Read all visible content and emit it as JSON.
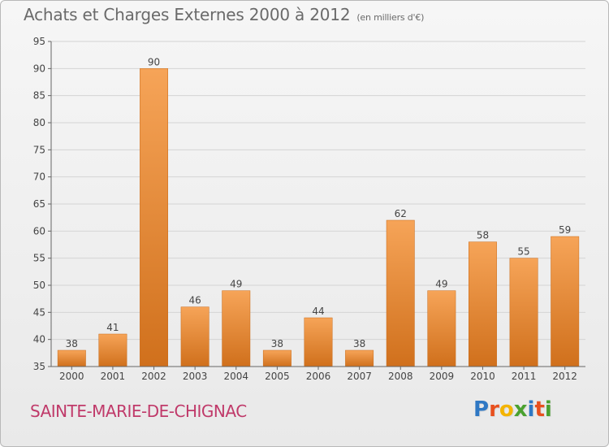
{
  "header": {
    "title": "Achats et Charges Externes 2000 à 2012",
    "subtitle": "(en milliers d'€)"
  },
  "footer": {
    "place": "SAINTE-MARIE-DE-CHIGNAC",
    "logo_text": "Proxiti",
    "logo_colors": [
      "#2f78c4",
      "#e8501e",
      "#f4b400",
      "#4aa12f",
      "#2f78c4",
      "#e8501e",
      "#4aa12f"
    ]
  },
  "colors": {
    "bar_top": "#f6a458",
    "bar_bottom": "#d0701c",
    "axis": "#666666",
    "grid": "#d4d4d4",
    "text": "#444444"
  },
  "chart_data": {
    "type": "bar",
    "title": "Achats et Charges Externes 2000 à 2012",
    "subtitle": "(en milliers d'€)",
    "categories": [
      "2000",
      "2001",
      "2002",
      "2003",
      "2004",
      "2005",
      "2006",
      "2007",
      "2008",
      "2009",
      "2010",
      "2011",
      "2012"
    ],
    "values": [
      38,
      41,
      90,
      46,
      49,
      38,
      44,
      38,
      62,
      49,
      58,
      55,
      59
    ],
    "ylim": [
      35,
      95
    ],
    "yticks": [
      35,
      40,
      45,
      50,
      55,
      60,
      65,
      70,
      75,
      80,
      85,
      90,
      95
    ],
    "grid": true,
    "legend": "none",
    "data_labels": true
  }
}
